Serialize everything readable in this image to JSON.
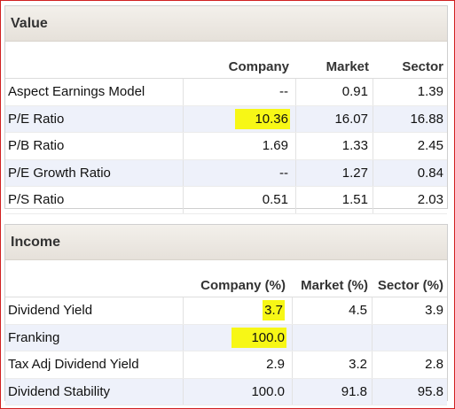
{
  "value": {
    "title": "Value",
    "columns": [
      "Company",
      "Market",
      "Sector"
    ],
    "rows": [
      {
        "label": "Aspect Earnings Model",
        "company": "--",
        "market": "0.91",
        "sector": "1.39"
      },
      {
        "label": "P/E Ratio",
        "company": "10.36",
        "market": "16.07",
        "sector": "16.88",
        "highlight": true
      },
      {
        "label": "P/B Ratio",
        "company": "1.69",
        "market": "1.33",
        "sector": "2.45"
      },
      {
        "label": "P/E Growth Ratio",
        "company": "--",
        "market": "1.27",
        "sector": "0.84"
      },
      {
        "label": "P/S Ratio",
        "company": "0.51",
        "market": "1.51",
        "sector": "2.03"
      }
    ]
  },
  "income": {
    "title": "Income",
    "columns": [
      "Company (%)",
      "Market (%)",
      "Sector (%)"
    ],
    "rows": [
      {
        "label": "Dividend Yield",
        "company": "3.7",
        "market": "4.5",
        "sector": "3.9",
        "highlight": true
      },
      {
        "label": "Franking",
        "company": "100.0",
        "market": "",
        "sector": "",
        "highlight": true
      },
      {
        "label": "Tax Adj Dividend Yield",
        "company": "2.9",
        "market": "3.2",
        "sector": "2.8"
      },
      {
        "label": "Dividend Stability",
        "company": "100.0",
        "market": "91.8",
        "sector": "95.8"
      }
    ]
  },
  "colors": {
    "highlight": "#f7f716",
    "row_alt": "#eef1fa",
    "frame_border": "#d02020"
  }
}
